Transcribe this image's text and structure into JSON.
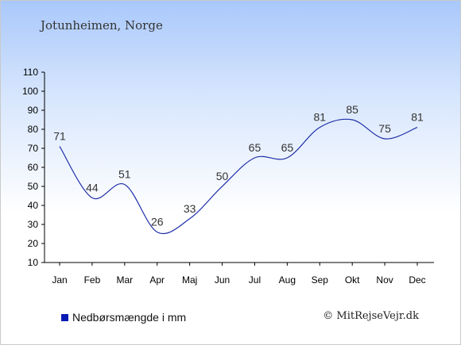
{
  "header": {
    "location": "Jotunheimen, Norge"
  },
  "footer": {
    "copyright": "© MitRejseVejr.dk"
  },
  "chart_data": {
    "type": "line",
    "title": "",
    "xlabel": "",
    "ylabel": "",
    "categories": [
      "Jan",
      "Feb",
      "Mar",
      "Apr",
      "Maj",
      "Jun",
      "Jul",
      "Aug",
      "Sep",
      "Okt",
      "Nov",
      "Dec"
    ],
    "series": [
      {
        "name": "Nedbørsmængde i mm",
        "values": [
          71,
          44,
          51,
          26,
          33,
          50,
          65,
          65,
          81,
          85,
          75,
          81
        ]
      }
    ],
    "yticks": [
      10,
      20,
      30,
      40,
      50,
      60,
      70,
      80,
      90,
      100,
      110
    ],
    "ylim": [
      10,
      110
    ],
    "grid": false,
    "legend_position": "bottom-left",
    "line_color": "#1f2fa8",
    "legend_color": "#0a1bb4"
  }
}
